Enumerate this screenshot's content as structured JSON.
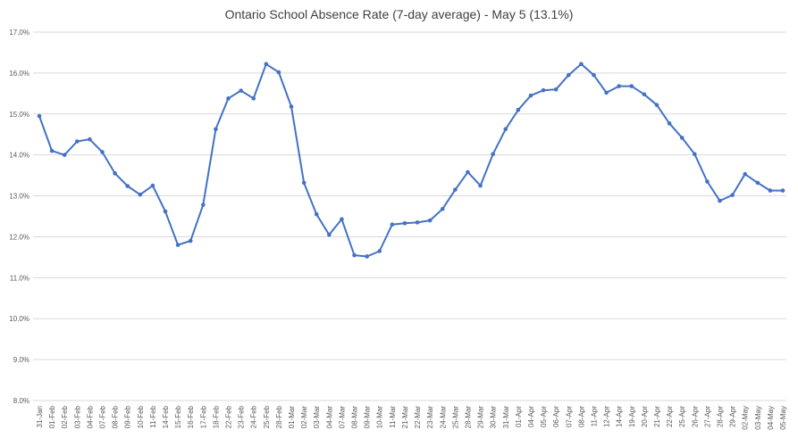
{
  "chart_data": {
    "type": "line",
    "title": "Ontario School Absence Rate (7-day average) - May 5 (13.1%)",
    "xlabel": "",
    "ylabel": "",
    "ylim": [
      8.0,
      17.0
    ],
    "yticks": [
      "8.0%",
      "9.0%",
      "10.0%",
      "11.0%",
      "12.0%",
      "13.0%",
      "14.0%",
      "15.0%",
      "16.0%",
      "17.0%"
    ],
    "grid": true,
    "legend": "none",
    "colors": {
      "line": "#4472c4",
      "grid": "#d9d9d9",
      "text": "#595959"
    },
    "categories": [
      "31-Jan",
      "01-Feb",
      "02-Feb",
      "03-Feb",
      "04-Feb",
      "07-Feb",
      "08-Feb",
      "09-Feb",
      "10-Feb",
      "11-Feb",
      "14-Feb",
      "15-Feb",
      "16-Feb",
      "17-Feb",
      "18-Feb",
      "22-Feb",
      "23-Feb",
      "24-Feb",
      "25-Feb",
      "28-Feb",
      "01-Mar",
      "02-Mar",
      "03-Mar",
      "04-Mar",
      "07-Mar",
      "08-Mar",
      "09-Mar",
      "10-Mar",
      "11-Mar",
      "21-Mar",
      "22-Mar",
      "23-Mar",
      "24-Mar",
      "25-Mar",
      "28-Mar",
      "29-Mar",
      "30-Mar",
      "31-Mar",
      "01-Apr",
      "04-Apr",
      "05-Apr",
      "06-Apr",
      "07-Apr",
      "08-Apr",
      "11-Apr",
      "12-Apr",
      "14-Apr",
      "19-Apr",
      "20-Apr",
      "21-Apr",
      "22-Apr",
      "25-Apr",
      "26-Apr",
      "27-Apr",
      "28-Apr",
      "29-Apr",
      "02-May",
      "03-May",
      "04-May",
      "05-May"
    ],
    "series": [
      {
        "values": [
          14.95,
          14.1,
          14.0,
          14.33,
          14.38,
          14.07,
          13.55,
          13.24,
          13.03,
          13.25,
          12.62,
          11.8,
          11.9,
          12.78,
          14.63,
          15.38,
          15.57,
          15.38,
          16.22,
          16.02,
          15.18,
          13.32,
          12.55,
          12.05,
          12.43,
          11.55,
          11.52,
          11.65,
          12.3,
          12.33,
          12.35,
          12.4,
          12.68,
          13.15,
          13.58,
          13.25,
          14.02,
          14.63,
          15.1,
          15.45,
          15.58,
          15.6,
          15.95,
          16.22,
          15.95,
          15.52,
          15.68,
          15.68,
          15.48,
          15.22,
          14.77,
          14.42,
          14.02,
          13.35,
          12.88,
          13.02,
          13.53,
          13.32,
          13.13,
          13.13
        ]
      }
    ]
  }
}
